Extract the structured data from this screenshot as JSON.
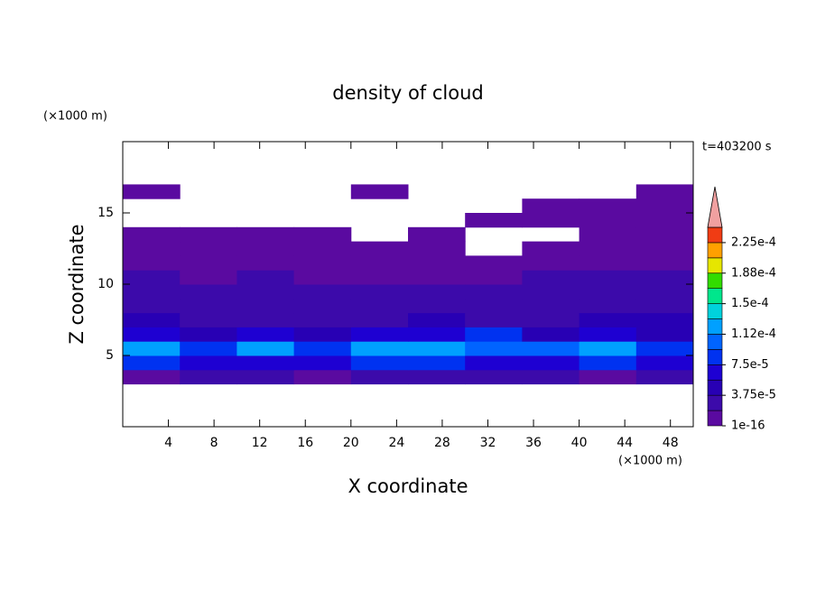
{
  "chart_data": {
    "type": "contour",
    "title": "density of cloud",
    "x_label": "X coordinate",
    "y_label": "Z coordinate",
    "x_unit": "(×1000 m)",
    "y_unit": "(×1000 m)",
    "time_label": "t=403200 s",
    "xlim": [
      0,
      50
    ],
    "ylim": [
      0,
      20
    ],
    "xticks": [
      4,
      8,
      12,
      16,
      20,
      24,
      28,
      32,
      36,
      40,
      44,
      48
    ],
    "yticks": [
      5,
      10,
      15
    ],
    "x": [
      2.5,
      7.5,
      12.5,
      17.5,
      22.5,
      27.5,
      32.5,
      37.5,
      42.5,
      47.5
    ],
    "z": [
      0.5,
      1.5,
      2.5,
      3.5,
      4.5,
      5.5,
      6.5,
      7.5,
      8.5,
      9.5,
      10.5,
      11.5,
      12.5,
      13.5,
      14.5,
      15.5,
      16.5,
      17.5,
      18.5,
      19.5
    ],
    "values": [
      [
        null,
        null,
        null,
        null,
        null,
        null,
        null,
        null,
        null,
        null
      ],
      [
        null,
        null,
        null,
        null,
        null,
        null,
        null,
        null,
        null,
        null
      ],
      [
        null,
        null,
        null,
        null,
        null,
        null,
        null,
        null,
        null,
        null
      ],
      [
        1.5e-05,
        2e-05,
        2e-05,
        1.5e-05,
        2e-05,
        2e-05,
        2e-05,
        2e-05,
        1.5e-05,
        2e-05
      ],
      [
        8e-05,
        6e-05,
        7e-05,
        6e-05,
        9e-05,
        8e-05,
        7e-05,
        6e-05,
        8e-05,
        7e-05
      ],
      [
        0.00013,
        9e-05,
        0.00012,
        8e-05,
        0.00012,
        0.00013,
        0.0001,
        0.00011,
        0.00012,
        8e-05
      ],
      [
        6e-05,
        5e-05,
        6e-05,
        4e-05,
        6e-05,
        7e-05,
        8e-05,
        5e-05,
        6e-05,
        5e-05
      ],
      [
        4e-05,
        3.5e-05,
        3e-05,
        3e-05,
        3e-05,
        4e-05,
        3e-05,
        3e-05,
        4e-05,
        4.5e-05
      ],
      [
        2.5e-05,
        2e-05,
        2.5e-05,
        2e-05,
        2e-05,
        2.5e-05,
        2e-05,
        2e-05,
        2.5e-05,
        3e-05
      ],
      [
        2e-05,
        2e-05,
        2e-05,
        2e-05,
        2e-05,
        2e-05,
        2e-05,
        2e-05,
        2e-05,
        2e-05
      ],
      [
        2e-05,
        1e-05,
        2e-05,
        1e-05,
        1e-05,
        1e-05,
        1e-05,
        2e-05,
        2e-05,
        2e-05
      ],
      [
        1e-05,
        1e-05,
        1e-05,
        1e-05,
        1e-05,
        1e-05,
        1e-05,
        1e-05,
        1e-05,
        1e-05
      ],
      [
        1e-05,
        1e-05,
        1e-05,
        1e-05,
        1e-05,
        1e-05,
        null,
        1e-05,
        1e-05,
        1e-05
      ],
      [
        1e-05,
        1e-05,
        1e-05,
        1e-05,
        null,
        1e-05,
        null,
        null,
        1e-05,
        1e-05
      ],
      [
        null,
        null,
        null,
        null,
        null,
        null,
        1e-05,
        1e-05,
        1e-05,
        1e-05
      ],
      [
        null,
        null,
        null,
        null,
        null,
        null,
        null,
        1e-05,
        1e-05,
        1e-05
      ],
      [
        1e-05,
        null,
        null,
        null,
        1e-05,
        null,
        null,
        null,
        null,
        1e-05
      ],
      [
        null,
        null,
        null,
        null,
        null,
        null,
        null,
        null,
        null,
        null
      ],
      [
        null,
        null,
        null,
        null,
        null,
        null,
        null,
        null,
        null,
        null
      ],
      [
        null,
        null,
        null,
        null,
        null,
        null,
        null,
        null,
        null,
        null
      ]
    ],
    "levels": [
      1e-16,
      1.875e-05,
      3.75e-05,
      5.625e-05,
      7.5e-05,
      9.375e-05,
      0.0001125,
      0.00013125,
      0.00015,
      0.00016875,
      0.0001875,
      0.00020625,
      0.000225,
      0.00024375
    ],
    "level_colors": [
      "#5a0aa0",
      "#3c0aaa",
      "#2800b4",
      "#1e00d2",
      "#0032f0",
      "#0064ff",
      "#00a0ff",
      "#00d2dc",
      "#00e68c",
      "#32dc00",
      "#e6e600",
      "#ffa000",
      "#f03c14"
    ],
    "extend_color": "#f0a0a0",
    "colorbar_ticks": [
      {
        "value": 1e-16,
        "label": "1e-16"
      },
      {
        "value": 3.75e-05,
        "label": "3.75e-5"
      },
      {
        "value": 7.5e-05,
        "label": "7.5e-5"
      },
      {
        "value": 0.0001125,
        "label": "1.12e-4"
      },
      {
        "value": 0.00015,
        "label": "1.5e-4"
      },
      {
        "value": 0.0001875,
        "label": "1.88e-4"
      },
      {
        "value": 0.000225,
        "label": "2.25e-4"
      }
    ]
  }
}
